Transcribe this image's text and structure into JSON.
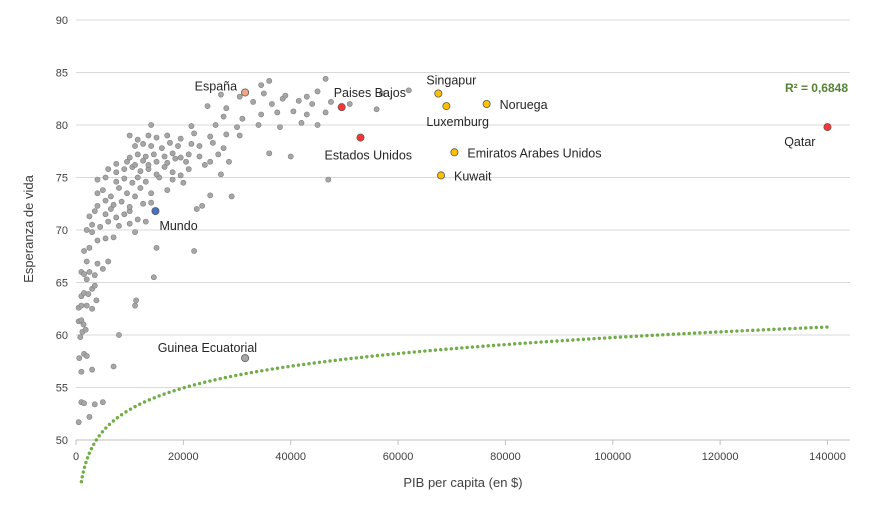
{
  "chart_data": {
    "type": "scatter",
    "title": "",
    "xlabel": "PIB per capita (en $)",
    "ylabel": "Esperanza de vida",
    "xlim": [
      0,
      150000
    ],
    "ylim": [
      50,
      90
    ],
    "x_ticks": [
      0,
      20000,
      40000,
      60000,
      80000,
      100000,
      120000,
      140000
    ],
    "y_ticks": [
      50,
      55,
      60,
      65,
      70,
      75,
      80,
      85,
      90
    ],
    "grid": "horizontal",
    "legend": "none",
    "trendline": {
      "type": "logarithmic",
      "color": "#70AD47",
      "style": "dotted",
      "label": "R² = 0,6848"
    },
    "colors": {
      "background_points": "#A6A6A6",
      "background_points_stroke": "#7F7F7F",
      "gold": "#FFC000",
      "red": "#FF0000",
      "salmon": "#F4A582",
      "blue": "#4472C4",
      "axis": "#595959",
      "grid": "#D9D9D9",
      "text": "#404040",
      "trend_text": "#548235"
    },
    "highlighted": [
      {
        "label": "España",
        "x": 31500,
        "y": 83.1,
        "color": "#F4A582",
        "label_pos": "left"
      },
      {
        "label": "Paises Bajos",
        "x": 49500,
        "y": 81.7,
        "color": "#FF3333",
        "label_pos": "above-right"
      },
      {
        "label": "Singapur",
        "x": 67500,
        "y": 83.0,
        "color": "#FFC000",
        "label_pos": "above-right"
      },
      {
        "label": "Noruega",
        "x": 76500,
        "y": 82.0,
        "color": "#FFC000",
        "label_pos": "right"
      },
      {
        "label": "Luxemburg",
        "x": 69000,
        "y": 81.8,
        "color": "#FFC000",
        "label_pos": "below"
      },
      {
        "label": "Estados Unidos",
        "x": 53000,
        "y": 78.8,
        "color": "#FF3333",
        "label_pos": "below"
      },
      {
        "label": "Emiratos Arabes Unidos",
        "x": 70500,
        "y": 77.4,
        "color": "#FFC000",
        "label_pos": "right"
      },
      {
        "label": "Kuwait",
        "x": 68000,
        "y": 75.2,
        "color": "#FFC000",
        "label_pos": "right"
      },
      {
        "label": "Qatar",
        "x": 140000,
        "y": 79.8,
        "color": "#FF3333",
        "label_pos": "below-left"
      },
      {
        "label": "Mundo",
        "x": 14800,
        "y": 71.8,
        "color": "#4472C4",
        "label_pos": "below-right"
      },
      {
        "label": "Guinea Ecuatorial",
        "x": 31500,
        "y": 57.8,
        "color": "#A6A6A6",
        "label_pos": "above-left"
      }
    ],
    "points": [
      [
        500,
        51.7
      ],
      [
        1000,
        53.6
      ],
      [
        1500,
        53.5
      ],
      [
        2500,
        52.2
      ],
      [
        3500,
        53.4
      ],
      [
        5000,
        53.6
      ],
      [
        1000,
        56.5
      ],
      [
        1500,
        58.2
      ],
      [
        2000,
        58.0
      ],
      [
        3000,
        56.7
      ],
      [
        7000,
        57.0
      ],
      [
        600,
        57.8
      ],
      [
        800,
        59.8
      ],
      [
        1200,
        60.3
      ],
      [
        1800,
        60.5
      ],
      [
        8000,
        60.0
      ],
      [
        500,
        61.3
      ],
      [
        1000,
        61.4
      ],
      [
        1400,
        61.0
      ],
      [
        500,
        62.6
      ],
      [
        1000,
        62.8
      ],
      [
        2000,
        62.8
      ],
      [
        3000,
        62.5
      ],
      [
        3800,
        63.3
      ],
      [
        11000,
        62.8
      ],
      [
        11200,
        63.3
      ],
      [
        1000,
        63.7
      ],
      [
        1500,
        64.0
      ],
      [
        2300,
        63.9
      ],
      [
        3000,
        64.4
      ],
      [
        3500,
        64.7
      ],
      [
        2000,
        65.3
      ],
      [
        3500,
        65.7
      ],
      [
        14500,
        65.5
      ],
      [
        1000,
        66.0
      ],
      [
        1500,
        65.8
      ],
      [
        2500,
        66.0
      ],
      [
        5000,
        66.3
      ],
      [
        2000,
        67.0
      ],
      [
        4000,
        66.8
      ],
      [
        6000,
        67.0
      ],
      [
        1500,
        68.0
      ],
      [
        2500,
        68.3
      ],
      [
        4000,
        69.0
      ],
      [
        5500,
        69.2
      ],
      [
        7000,
        69.3
      ],
      [
        3000,
        69.8
      ],
      [
        22000,
        68.0
      ],
      [
        2000,
        70.0
      ],
      [
        3000,
        70.5
      ],
      [
        4500,
        70.3
      ],
      [
        6000,
        70.8
      ],
      [
        8000,
        70.4
      ],
      [
        10000,
        70.6
      ],
      [
        11000,
        69.8
      ],
      [
        15000,
        68.3
      ],
      [
        2500,
        71.3
      ],
      [
        3500,
        71.8
      ],
      [
        5500,
        71.5
      ],
      [
        6500,
        72.0
      ],
      [
        7500,
        71.2
      ],
      [
        9000,
        71.5
      ],
      [
        10000,
        71.8
      ],
      [
        11500,
        71.0
      ],
      [
        13000,
        70.8
      ],
      [
        4000,
        72.3
      ],
      [
        5500,
        72.8
      ],
      [
        7000,
        72.4
      ],
      [
        8500,
        72.7
      ],
      [
        10000,
        72.2
      ],
      [
        12500,
        72.5
      ],
      [
        14000,
        72.6
      ],
      [
        22500,
        72.0
      ],
      [
        23500,
        72.3
      ],
      [
        4000,
        73.5
      ],
      [
        5000,
        73.8
      ],
      [
        6500,
        73.2
      ],
      [
        8000,
        74.0
      ],
      [
        9500,
        73.5
      ],
      [
        11000,
        73.2
      ],
      [
        12000,
        74.0
      ],
      [
        14000,
        73.5
      ],
      [
        17000,
        73.8
      ],
      [
        29000,
        73.2
      ],
      [
        25000,
        73.3
      ],
      [
        4000,
        74.8
      ],
      [
        5500,
        75.0
      ],
      [
        7500,
        74.6
      ],
      [
        9000,
        74.9
      ],
      [
        10500,
        74.5
      ],
      [
        11500,
        75.0
      ],
      [
        13000,
        74.6
      ],
      [
        15500,
        75.0
      ],
      [
        18000,
        74.8
      ],
      [
        20000,
        74.5
      ],
      [
        47000,
        74.8
      ],
      [
        6000,
        75.8
      ],
      [
        7500,
        75.5
      ],
      [
        9000,
        75.8
      ],
      [
        10500,
        76.0
      ],
      [
        12000,
        75.6
      ],
      [
        13500,
        75.8
      ],
      [
        15000,
        75.3
      ],
      [
        16500,
        76.0
      ],
      [
        18000,
        75.5
      ],
      [
        19500,
        75.2
      ],
      [
        21000,
        75.8
      ],
      [
        27000,
        75.3
      ],
      [
        7500,
        76.3
      ],
      [
        9500,
        76.5
      ],
      [
        11000,
        76.2
      ],
      [
        12500,
        76.6
      ],
      [
        13500,
        76.2
      ],
      [
        15000,
        76.5
      ],
      [
        17000,
        76.4
      ],
      [
        18500,
        76.8
      ],
      [
        20500,
        76.5
      ],
      [
        24000,
        76.2
      ],
      [
        25000,
        76.5
      ],
      [
        28500,
        76.5
      ],
      [
        10000,
        76.9
      ],
      [
        11500,
        77.2
      ],
      [
        13000,
        77.0
      ],
      [
        14500,
        77.2
      ],
      [
        16500,
        77.0
      ],
      [
        18000,
        77.3
      ],
      [
        19500,
        76.9
      ],
      [
        21000,
        77.2
      ],
      [
        23000,
        77.0
      ],
      [
        26500,
        77.2
      ],
      [
        36000,
        77.3
      ],
      [
        40000,
        77.0
      ],
      [
        11000,
        78.0
      ],
      [
        12500,
        78.2
      ],
      [
        14000,
        78.0
      ],
      [
        16000,
        77.8
      ],
      [
        17500,
        78.3
      ],
      [
        19000,
        78.0
      ],
      [
        21500,
        78.2
      ],
      [
        23000,
        78.0
      ],
      [
        25500,
        78.3
      ],
      [
        27500,
        77.8
      ],
      [
        10000,
        79.0
      ],
      [
        11500,
        78.6
      ],
      [
        13500,
        79.0
      ],
      [
        15000,
        78.8
      ],
      [
        17000,
        79.0
      ],
      [
        19500,
        78.7
      ],
      [
        22000,
        79.2
      ],
      [
        25000,
        78.9
      ],
      [
        28000,
        79.1
      ],
      [
        30500,
        79.0
      ],
      [
        14000,
        80.0
      ],
      [
        21500,
        79.9
      ],
      [
        26000,
        80.0
      ],
      [
        30000,
        79.8
      ],
      [
        34000,
        80.0
      ],
      [
        38000,
        79.8
      ],
      [
        42000,
        80.2
      ],
      [
        45000,
        80.0
      ],
      [
        27500,
        80.8
      ],
      [
        31000,
        80.6
      ],
      [
        34500,
        81.0
      ],
      [
        37500,
        81.2
      ],
      [
        40500,
        81.3
      ],
      [
        43000,
        81.0
      ],
      [
        46500,
        81.2
      ],
      [
        56000,
        81.5
      ],
      [
        24500,
        81.8
      ],
      [
        28000,
        81.6
      ],
      [
        33000,
        82.2
      ],
      [
        36500,
        82.0
      ],
      [
        38500,
        82.5
      ],
      [
        41500,
        82.3
      ],
      [
        44000,
        82.0
      ],
      [
        47500,
        82.2
      ],
      [
        51000,
        82.0
      ],
      [
        27000,
        82.9
      ],
      [
        30500,
        82.7
      ],
      [
        35000,
        83.0
      ],
      [
        39000,
        82.8
      ],
      [
        43000,
        82.7
      ],
      [
        45000,
        83.2
      ],
      [
        57000,
        83.0
      ],
      [
        62000,
        83.3
      ],
      [
        34500,
        83.8
      ],
      [
        36000,
        84.2
      ],
      [
        46500,
        84.4
      ]
    ]
  }
}
